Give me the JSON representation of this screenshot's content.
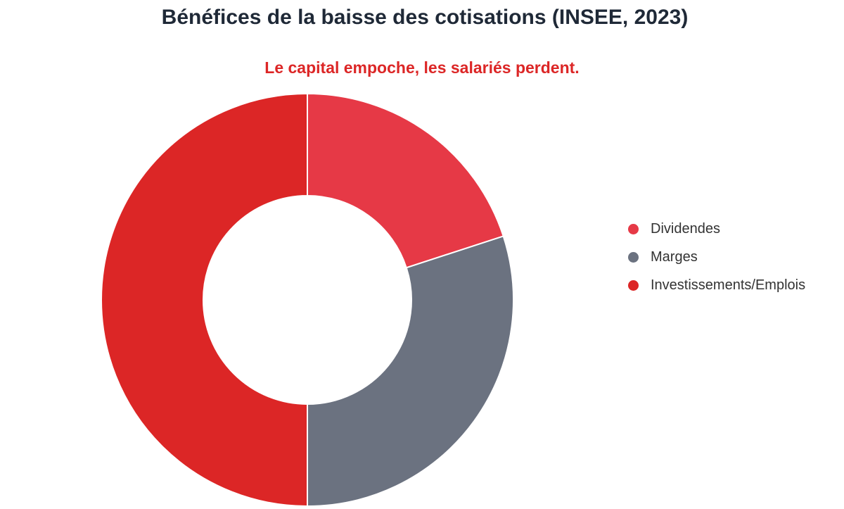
{
  "chart_data": {
    "type": "pie",
    "variant": "doughnut",
    "title": "Bénéfices de la baisse des cotisations (INSEE, 2023)",
    "subtitle": "Le capital empoche, les salariés perdent.",
    "legend_position": "right",
    "series": [
      {
        "labels": [
          "Dividendes",
          "Marges",
          "Investissements/Emplois"
        ],
        "values": [
          20,
          30,
          50
        ],
        "colors": [
          "#e63946",
          "#6b7280",
          "#dc2626"
        ]
      }
    ]
  }
}
